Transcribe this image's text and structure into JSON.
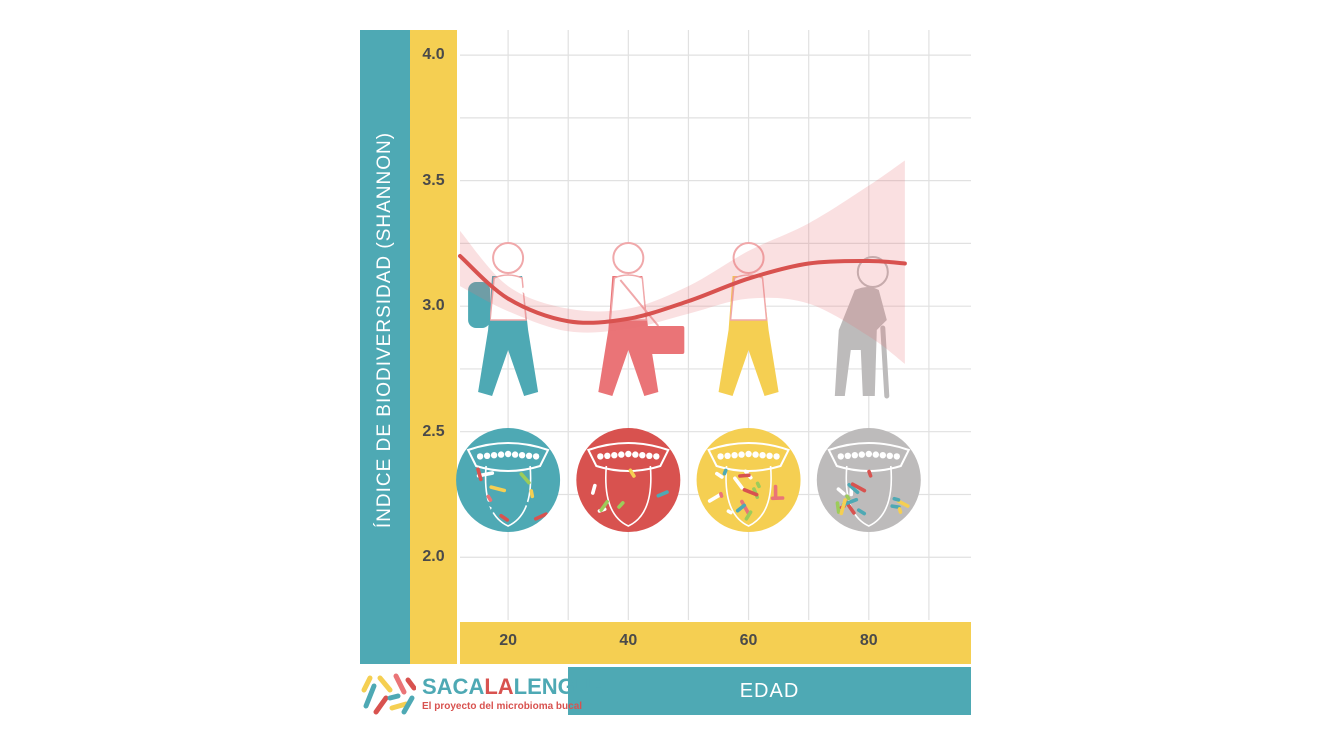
{
  "colors": {
    "teal": "#4ea9b4",
    "yellow": "#f5cf52",
    "red": "#d8524f",
    "pink": "#ea7477",
    "gray": "#bdbbbb",
    "tick_text": "#4a4a4a"
  },
  "brand": {
    "name_part1": "SACA",
    "name_part2": "LA",
    "name_part3": "LENGUA",
    "tagline": "El proyecto del microbioma bucal"
  },
  "chart_data": {
    "type": "line",
    "title": "",
    "xlabel": "EDAD",
    "ylabel": "ÍNDICE DE BIODIVERSIDAD (SHANNON)",
    "xlim": [
      12,
      97
    ],
    "ylim": [
      1.75,
      4.1
    ],
    "grid": true,
    "x_ticks": [
      20,
      40,
      60,
      80
    ],
    "x_tick_labels": [
      "20",
      "40",
      "60",
      "80"
    ],
    "y_ticks": [
      2.0,
      2.5,
      3.0,
      3.5,
      4.0
    ],
    "y_tick_labels": [
      "2.0",
      "2.5",
      "3.0",
      "3.5",
      "4.0"
    ],
    "series": [
      {
        "type": "smooth-fit",
        "x": [
          12,
          20,
          30,
          40,
          50,
          60,
          70,
          80,
          86
        ],
        "y": [
          3.2,
          3.03,
          2.94,
          2.95,
          3.02,
          3.11,
          3.17,
          3.18,
          3.17
        ],
        "ci_upper": [
          3.3,
          3.08,
          2.99,
          2.99,
          3.08,
          3.22,
          3.33,
          3.48,
          3.58
        ],
        "ci_lower": [
          3.08,
          2.98,
          2.9,
          2.91,
          2.97,
          3.03,
          3.01,
          2.88,
          2.77
        ]
      }
    ],
    "figures": [
      {
        "age": 20,
        "color": "teal",
        "icon": "walking-person-backpack-icon"
      },
      {
        "age": 40,
        "color": "pink",
        "icon": "walking-person-briefcase-icon"
      },
      {
        "age": 60,
        "color": "yellow",
        "icon": "walking-person-icon"
      },
      {
        "age": 80,
        "color": "gray",
        "icon": "elderly-person-cane-icon"
      }
    ],
    "tongues": [
      {
        "age": 20,
        "color": "teal",
        "icon": "tongue-microbiome-icon"
      },
      {
        "age": 40,
        "color": "red",
        "icon": "tongue-microbiome-icon"
      },
      {
        "age": 60,
        "color": "yellow",
        "icon": "tongue-microbiome-icon"
      },
      {
        "age": 80,
        "color": "gray",
        "icon": "tongue-microbiome-icon"
      }
    ]
  }
}
